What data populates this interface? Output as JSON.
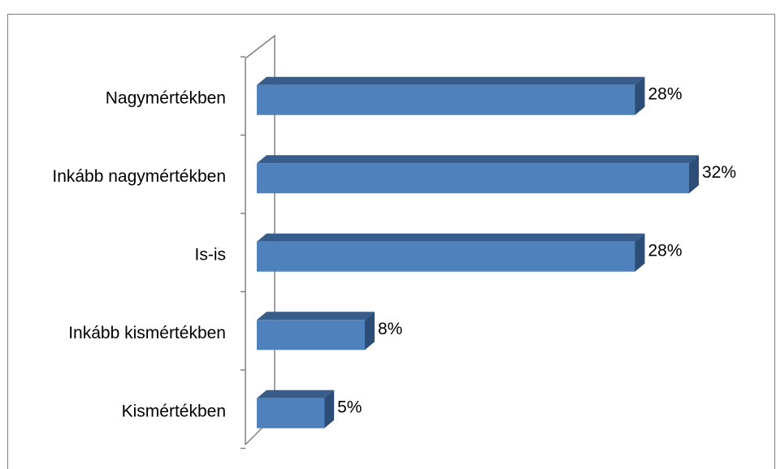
{
  "chart_data": {
    "type": "bar",
    "orientation": "horizontal",
    "style": "3d",
    "categories": [
      "Nagymértékben",
      "Inkább nagymértékben",
      "Is-is",
      "Inkább kismértékben",
      "Kismértékben"
    ],
    "values": [
      28,
      32,
      28,
      8,
      5
    ],
    "value_labels": [
      "28%",
      "32%",
      "28%",
      "8%",
      "5%"
    ],
    "unit": "%",
    "xlim": [
      0,
      32
    ],
    "grid": false,
    "legend": "none",
    "colors": {
      "bar_front": "#4f81bd",
      "bar_top": "#385d8a",
      "bar_side": "#2c4d75",
      "axis": "#808080"
    }
  }
}
